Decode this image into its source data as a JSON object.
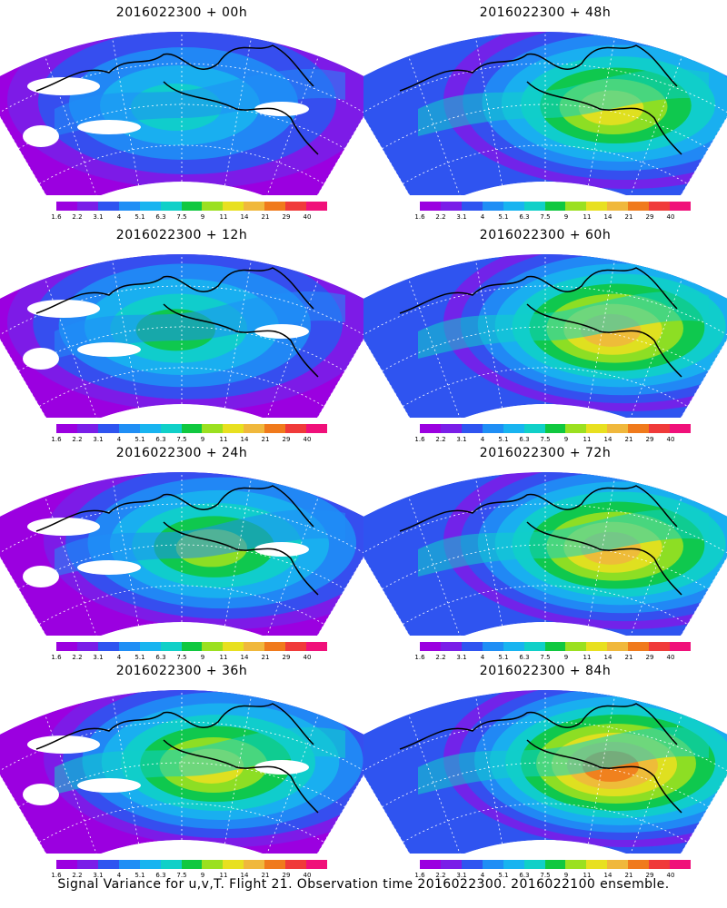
{
  "panels": [
    {
      "title": "2016022300 + 00h",
      "intensity": 0.15,
      "hotspot": "center",
      "blanks": true
    },
    {
      "title": "2016022300 + 48h",
      "intensity": 0.55,
      "hotspot": "right",
      "blanks": false
    },
    {
      "title": "2016022300 + 12h",
      "intensity": 0.25,
      "hotspot": "center",
      "blanks": true
    },
    {
      "title": "2016022300 + 60h",
      "intensity": 0.6,
      "hotspot": "right",
      "blanks": false
    },
    {
      "title": "2016022300 + 24h",
      "intensity": 0.35,
      "hotspot": "center-right",
      "blanks": true
    },
    {
      "title": "2016022300 + 72h",
      "intensity": 0.65,
      "hotspot": "right",
      "blanks": false
    },
    {
      "title": "2016022300 + 36h",
      "intensity": 0.45,
      "hotspot": "center-right",
      "blanks": true
    },
    {
      "title": "2016022300 + 84h",
      "intensity": 0.75,
      "hotspot": "right",
      "blanks": false
    }
  ],
  "colorbar": {
    "labels": [
      "1.6",
      "2.2",
      "3.1",
      "4",
      "5.1",
      "6.3",
      "7.5",
      "9",
      "11",
      "14",
      "21",
      "29",
      "40"
    ],
    "colors": [
      "#9b00e0",
      "#7a1ee8",
      "#2f54f0",
      "#1f8ef5",
      "#18b4f0",
      "#10d0c8",
      "#10c840",
      "#9be020",
      "#e8e020",
      "#f0b83c",
      "#f07a1c",
      "#f03a3a",
      "#f0107a"
    ]
  },
  "footer": "Signal Variance for u,v,T. Flight 21. Observation time 2016022300. 2016022100 ensemble."
}
